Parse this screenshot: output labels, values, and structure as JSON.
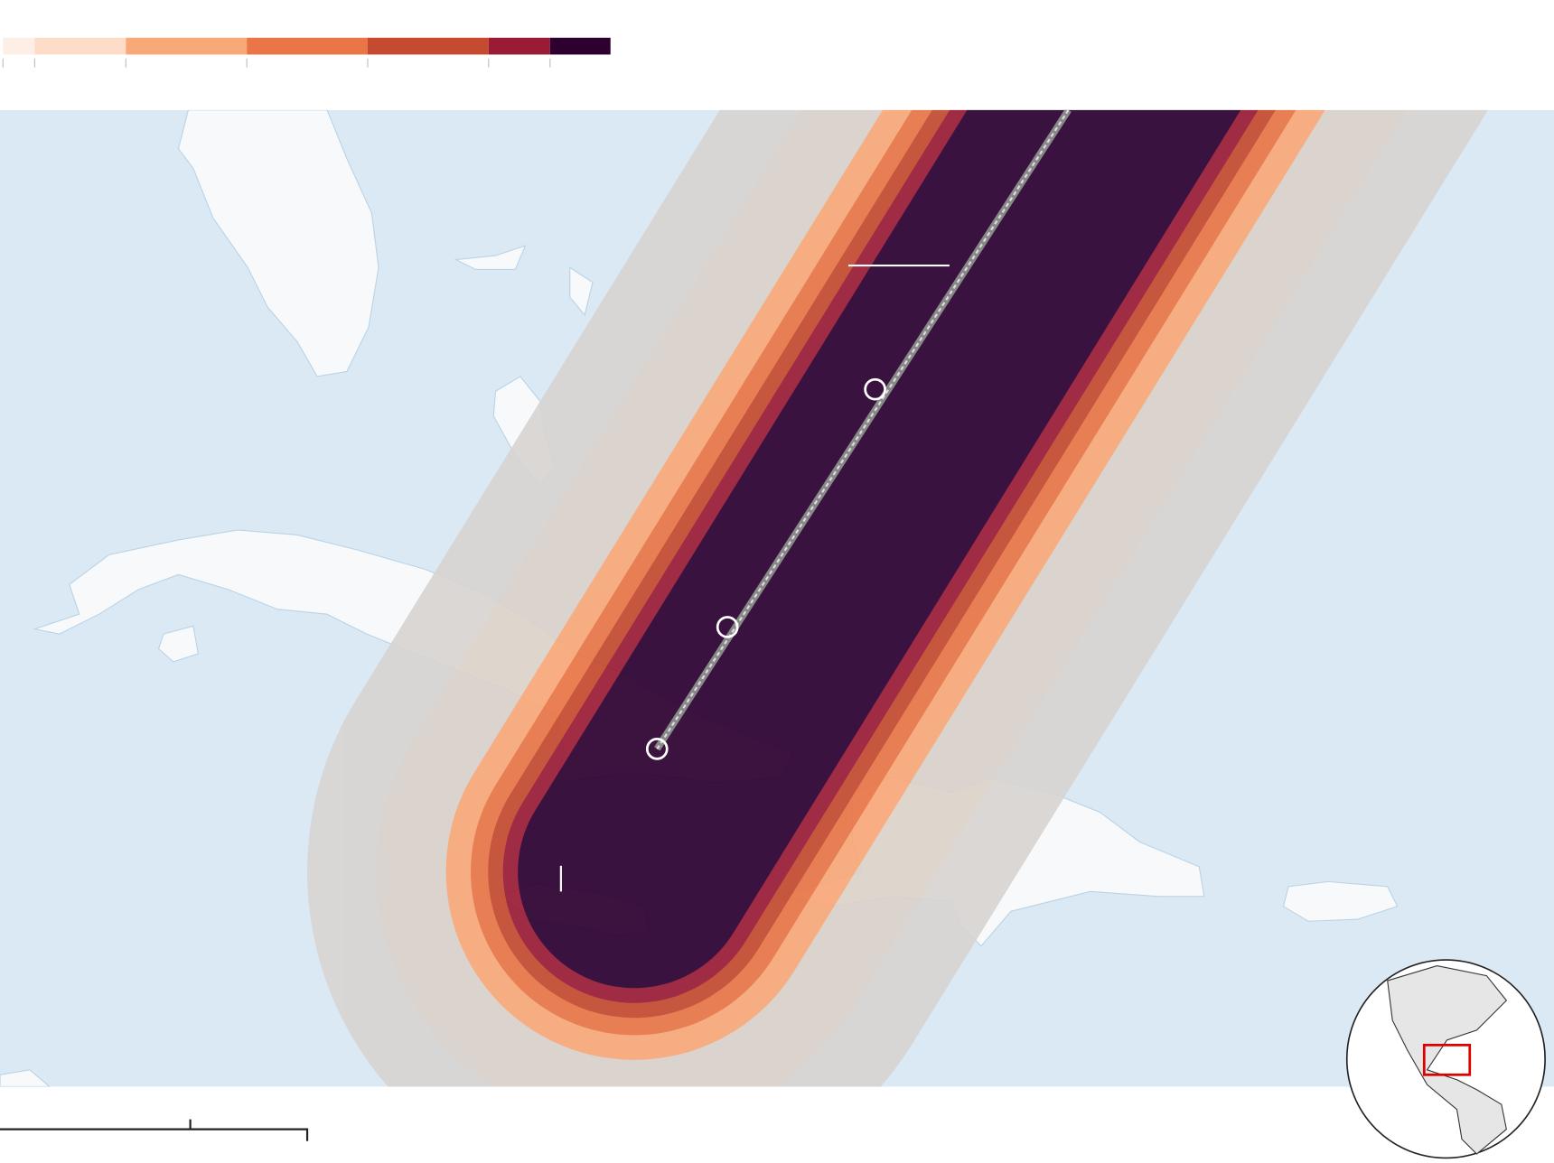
{
  "legend": {
    "colors": [
      "#fdeee6",
      "#fddcc8",
      "#f9a878",
      "#ea7547",
      "#c64a2f",
      "#9a1b35",
      "#2d0030"
    ]
  }
}
